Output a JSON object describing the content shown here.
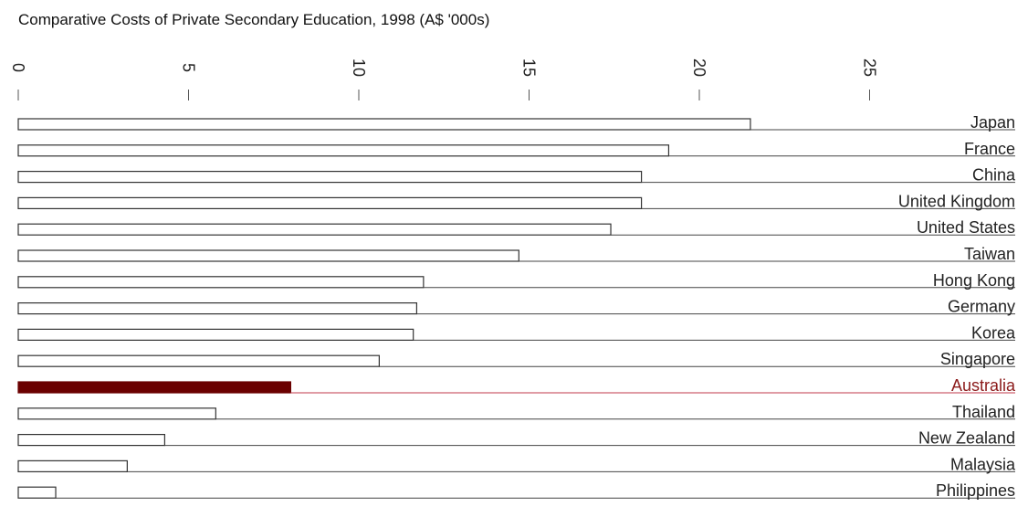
{
  "chart_data": {
    "type": "bar",
    "orientation": "horizontal",
    "title": "Comparative Costs of Private Secondary Education, 1998 (A$ '000s)",
    "xlabel": "",
    "ylabel": "",
    "xlim": [
      0,
      28
    ],
    "ticks": [
      0,
      5,
      10,
      15,
      20,
      25
    ],
    "tick_labels": [
      "0",
      "5",
      "10",
      "15",
      "20",
      "25"
    ],
    "categories": [
      "Japan",
      "France",
      "China",
      "United Kingdom",
      "United States",
      "Taiwan",
      "Hong Kong",
      "Germany",
      "Korea",
      "Singapore",
      "Australia",
      "Thailand",
      "New Zealand",
      "Malaysia",
      "Philippines"
    ],
    "values": [
      21.5,
      19.1,
      18.3,
      18.3,
      17.4,
      14.7,
      11.9,
      11.7,
      11.6,
      10.6,
      8.0,
      5.8,
      4.3,
      3.2,
      1.1
    ],
    "highlight": "Australia",
    "colors": {
      "bar_fill": "#ffffff",
      "bar_stroke": "#333333",
      "highlight": "#6b0000",
      "highlight_line": "#c0394b",
      "line": "#444444"
    }
  }
}
